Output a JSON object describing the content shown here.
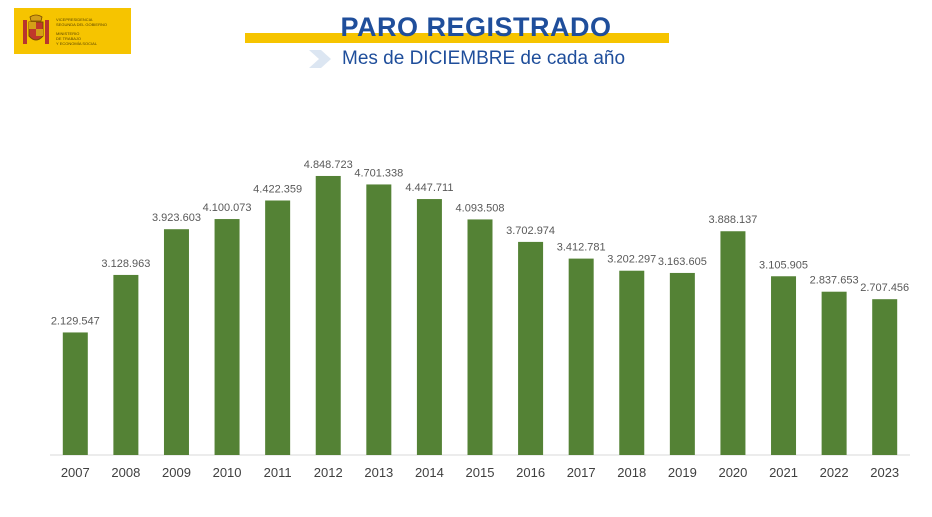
{
  "header": {
    "title": "PARO REGISTRADO",
    "subtitle": "Mes de DICIEMBRE de cada año",
    "logo_lines": [
      "Vicepresidencia",
      "Segunda del Gobierno",
      "Ministerio",
      "de Trabajo",
      "y Economía Social"
    ],
    "logo_icon": "coat-of-arms-icon",
    "accent_color": "#f6c400",
    "title_color": "#1f4e9b"
  },
  "chart_data": {
    "type": "bar",
    "title": "PARO REGISTRADO",
    "subtitle": "Mes de DICIEMBRE de cada año",
    "xlabel": "",
    "ylabel": "",
    "ylim": [
      0,
      5300000
    ],
    "grid": false,
    "legend": "none",
    "bar_color": "#548235",
    "categories": [
      "2007",
      "2008",
      "2009",
      "2010",
      "2011",
      "2012",
      "2013",
      "2014",
      "2015",
      "2016",
      "2017",
      "2018",
      "2019",
      "2020",
      "2021",
      "2022",
      "2023"
    ],
    "values": [
      2129547,
      3128963,
      3923603,
      4100073,
      4422359,
      4848723,
      4701338,
      4447711,
      4093508,
      3702974,
      3412781,
      3202297,
      3163605,
      3888137,
      3105905,
      2837653,
      2707456
    ],
    "data_labels": [
      "2.129.547",
      "3.128.963",
      "3.923.603",
      "4.100.073",
      "4.422.359",
      "4.848.723",
      "4.701.338",
      "4.447.711",
      "4.093.508",
      "3.702.974",
      "3.412.781",
      "3.202.297",
      "3.163.605",
      "3.888.137",
      "3.105.905",
      "2.837.653",
      "2.707.456"
    ]
  }
}
